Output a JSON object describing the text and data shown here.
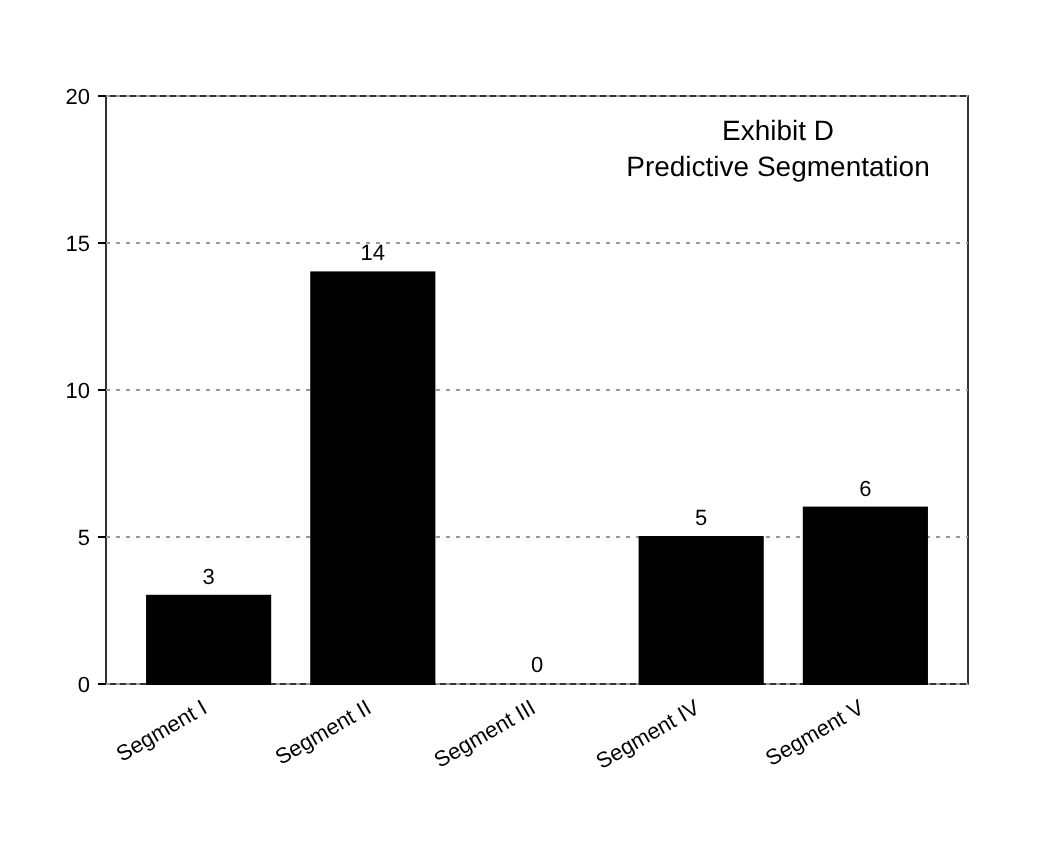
{
  "chart_data": {
    "type": "bar",
    "title": "Exhibit D",
    "subtitle": "Predictive Segmentation",
    "categories": [
      "Segment I",
      "Segment II",
      "Segment III",
      "Segment IV",
      "Segment V"
    ],
    "values": [
      3,
      14,
      0,
      5,
      6
    ],
    "color": "#000000",
    "ylim": [
      0,
      20
    ],
    "yticks": [
      0,
      5,
      10,
      15,
      20
    ],
    "grid": "y",
    "data_labels": true
  }
}
